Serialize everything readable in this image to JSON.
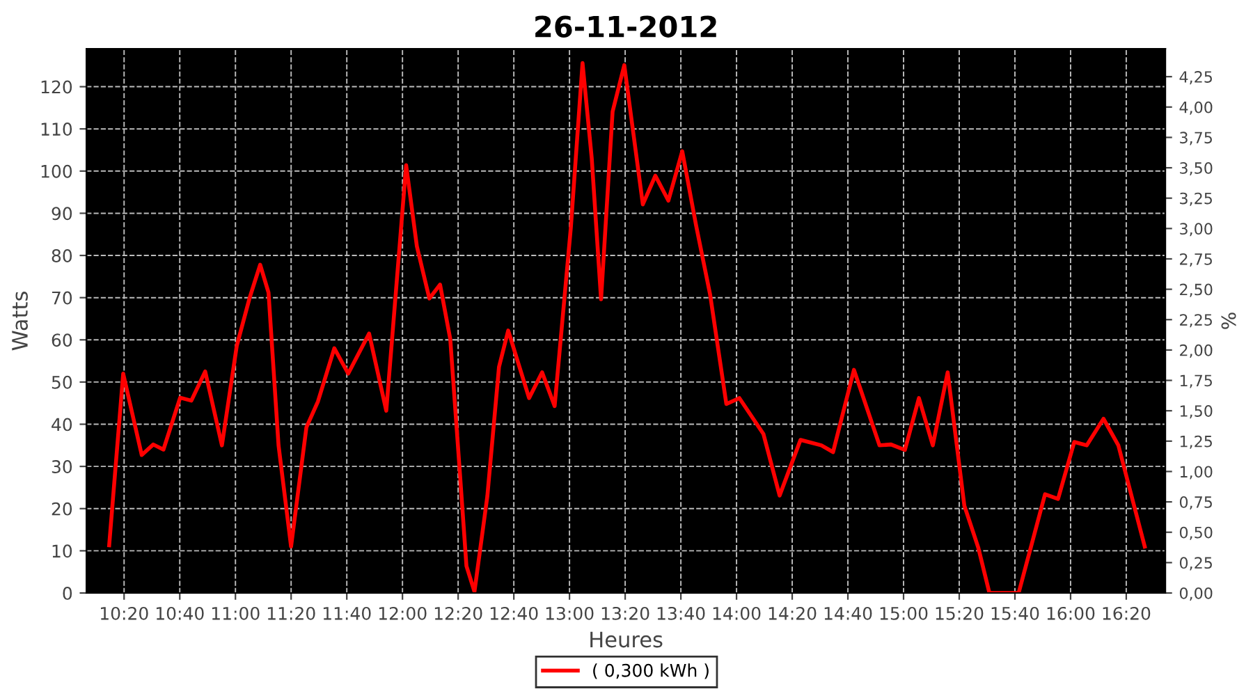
{
  "chart_data": {
    "type": "line",
    "title": "26-11-2012",
    "xlabel": "Heures",
    "ylabel": "Watts",
    "y2label": "%",
    "xlim": [
      10.108,
      16.567
    ],
    "xticks": [
      {
        "value": 10.3333,
        "label": "10:20"
      },
      {
        "value": 10.6667,
        "label": "10:40"
      },
      {
        "value": 11,
        "label": "11:00"
      },
      {
        "value": 11.3333,
        "label": "11:20"
      },
      {
        "value": 11.6667,
        "label": "11:40"
      },
      {
        "value": 12,
        "label": "12:00"
      },
      {
        "value": 12.3333,
        "label": "12:20"
      },
      {
        "value": 12.6667,
        "label": "12:40"
      },
      {
        "value": 13,
        "label": "13:00"
      },
      {
        "value": 13.3333,
        "label": "13:20"
      },
      {
        "value": 13.6667,
        "label": "13:40"
      },
      {
        "value": 14,
        "label": "14:00"
      },
      {
        "value": 14.3333,
        "label": "14:20"
      },
      {
        "value": 14.6667,
        "label": "14:40"
      },
      {
        "value": 15,
        "label": "15:00"
      },
      {
        "value": 15.3333,
        "label": "15:20"
      },
      {
        "value": 15.6667,
        "label": "15:40"
      },
      {
        "value": 16,
        "label": "16:00"
      },
      {
        "value": 16.3333,
        "label": "16:20"
      }
    ],
    "ylim": [
      0,
      129
    ],
    "yticks": [
      0,
      10,
      20,
      30,
      40,
      50,
      60,
      70,
      80,
      90,
      100,
      110,
      120
    ],
    "y2lim": [
      0,
      4.48
    ],
    "y2ticks": [
      {
        "value": 0,
        "label": "0,00"
      },
      {
        "value": 0.25,
        "label": "0,25"
      },
      {
        "value": 0.5,
        "label": "0,50"
      },
      {
        "value": 0.75,
        "label": "0,75"
      },
      {
        "value": 1,
        "label": "1,00"
      },
      {
        "value": 1.25,
        "label": "1,25"
      },
      {
        "value": 1.5,
        "label": "1,50"
      },
      {
        "value": 1.75,
        "label": "1,75"
      },
      {
        "value": 2,
        "label": "2,00"
      },
      {
        "value": 2.25,
        "label": "2,25"
      },
      {
        "value": 2.5,
        "label": "2,50"
      },
      {
        "value": 2.75,
        "label": "2,75"
      },
      {
        "value": 3,
        "label": "3,00"
      },
      {
        "value": 3.25,
        "label": "3,25"
      },
      {
        "value": 3.5,
        "label": "3,50"
      },
      {
        "value": 3.75,
        "label": "3,75"
      },
      {
        "value": 4,
        "label": "4,00"
      },
      {
        "value": 4.25,
        "label": "4,25"
      }
    ],
    "grid": true,
    "legend": "bottom",
    "series": [
      {
        "name": "( 0,300 kWh )",
        "color": "#ff0000",
        "x": [
          10.244,
          10.328,
          10.439,
          10.508,
          10.569,
          10.669,
          10.736,
          10.819,
          10.919,
          11.008,
          11.086,
          11.148,
          11.198,
          11.258,
          11.333,
          11.425,
          11.494,
          11.592,
          11.675,
          11.8,
          11.903,
          12.022,
          12.086,
          12.161,
          12.225,
          12.286,
          12.342,
          12.383,
          12.431,
          12.508,
          12.578,
          12.633,
          12.758,
          12.836,
          12.911,
          13.008,
          13.078,
          13.133,
          13.189,
          13.258,
          13.328,
          13.439,
          13.514,
          13.592,
          13.675,
          13.758,
          13.842,
          13.939,
          14.017,
          14.161,
          14.258,
          14.383,
          14.508,
          14.578,
          14.703,
          14.856,
          14.925,
          15.008,
          15.092,
          15.175,
          15.264,
          15.364,
          15.447,
          15.514,
          15.606,
          15.689,
          15.847,
          15.925,
          16.022,
          16.097,
          16.197,
          16.286,
          16.444
        ],
        "values": [
          11.3,
          52,
          32.7,
          35.2,
          34,
          46.3,
          45.6,
          52.5,
          35,
          58.6,
          70.1,
          77.8,
          71.2,
          35,
          11,
          39.3,
          45.4,
          58,
          52,
          61.5,
          43.2,
          101.4,
          82.2,
          69.8,
          73.1,
          60.2,
          29.4,
          6.4,
          0.3,
          22.9,
          53.6,
          62.2,
          46.2,
          52.3,
          44.3,
          86.6,
          125.6,
          103.1,
          69.6,
          114.1,
          125.1,
          92.1,
          98.9,
          93,
          104.7,
          87.1,
          70.7,
          44.8,
          46.2,
          37.7,
          23.1,
          36.3,
          35,
          33.4,
          52.9,
          35,
          35.2,
          33.9,
          46.2,
          35,
          52.3,
          20.7,
          10.8,
          0,
          0,
          0,
          23.4,
          22.3,
          35.8,
          35,
          41.3,
          35,
          11
        ]
      }
    ]
  }
}
